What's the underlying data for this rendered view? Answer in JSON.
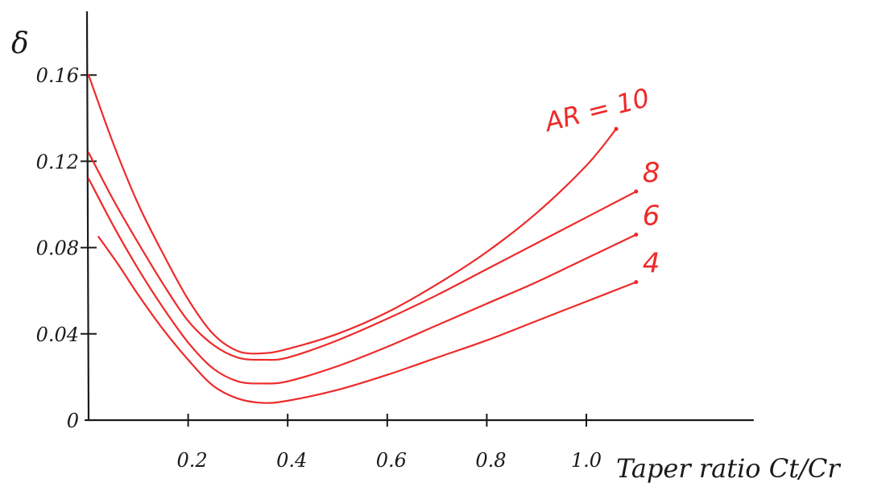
{
  "chart_data": {
    "type": "line",
    "title": "",
    "ylabel": "δ",
    "xlabel": "Taper ratio Ct/Cr",
    "xlim": [
      0,
      1.25
    ],
    "ylim": [
      0,
      0.18
    ],
    "x_ticks": [
      {
        "value": 0.2,
        "label": "0.2"
      },
      {
        "value": 0.4,
        "label": "0.4"
      },
      {
        "value": 0.6,
        "label": "0.6"
      },
      {
        "value": 0.8,
        "label": "0.8"
      },
      {
        "value": 1.0,
        "label": "1.0"
      }
    ],
    "y_ticks": [
      {
        "value": 0,
        "label": "0"
      },
      {
        "value": 0.04,
        "label": "0.04"
      },
      {
        "value": 0.08,
        "label": "0.08"
      },
      {
        "value": 0.12,
        "label": "0.12"
      },
      {
        "value": 0.16,
        "label": "0.16"
      }
    ],
    "series_color": "#ee2a2a",
    "series": [
      {
        "name": "AR = 10",
        "x": [
          0,
          0.05,
          0.1,
          0.15,
          0.2,
          0.25,
          0.3,
          0.35,
          0.4,
          0.5,
          0.6,
          0.7,
          0.8,
          0.9,
          1.0,
          1.06
        ],
        "y": [
          0.16,
          0.128,
          0.1,
          0.077,
          0.056,
          0.04,
          0.032,
          0.031,
          0.033,
          0.04,
          0.05,
          0.063,
          0.078,
          0.096,
          0.118,
          0.135
        ]
      },
      {
        "name": "8",
        "x": [
          0,
          0.05,
          0.1,
          0.15,
          0.2,
          0.25,
          0.3,
          0.35,
          0.4,
          0.5,
          0.6,
          0.7,
          0.8,
          0.9,
          1.0,
          1.1
        ],
        "y": [
          0.124,
          0.102,
          0.082,
          0.063,
          0.046,
          0.035,
          0.029,
          0.028,
          0.029,
          0.037,
          0.047,
          0.058,
          0.07,
          0.082,
          0.094,
          0.106
        ]
      },
      {
        "name": "6",
        "x": [
          0,
          0.05,
          0.1,
          0.15,
          0.2,
          0.25,
          0.3,
          0.35,
          0.4,
          0.5,
          0.6,
          0.7,
          0.8,
          0.9,
          1.0,
          1.1
        ],
        "y": [
          0.112,
          0.09,
          0.07,
          0.052,
          0.036,
          0.024,
          0.018,
          0.017,
          0.018,
          0.025,
          0.034,
          0.044,
          0.054,
          0.064,
          0.075,
          0.086
        ]
      },
      {
        "name": "4",
        "x": [
          0.02,
          0.06,
          0.1,
          0.15,
          0.2,
          0.25,
          0.3,
          0.35,
          0.4,
          0.5,
          0.6,
          0.7,
          0.8,
          0.9,
          1.0,
          1.1
        ],
        "y": [
          0.085,
          0.072,
          0.058,
          0.042,
          0.028,
          0.016,
          0.01,
          0.008,
          0.009,
          0.014,
          0.021,
          0.029,
          0.037,
          0.046,
          0.055,
          0.064
        ]
      }
    ]
  }
}
